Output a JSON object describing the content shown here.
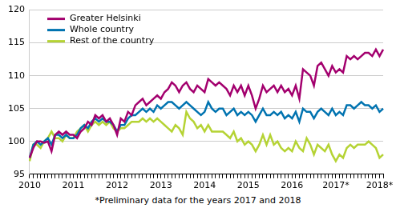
{
  "chart_data": {
    "type": "line",
    "categories": [
      "2010",
      null,
      null,
      null,
      null,
      null,
      null,
      null,
      null,
      null,
      null,
      null,
      "2011",
      null,
      null,
      null,
      null,
      null,
      null,
      null,
      null,
      null,
      null,
      null,
      "2012",
      null,
      null,
      null,
      null,
      null,
      null,
      null,
      null,
      null,
      null,
      null,
      "2013",
      null,
      null,
      null,
      null,
      null,
      null,
      null,
      null,
      null,
      null,
      null,
      "2014",
      null,
      null,
      null,
      null,
      null,
      null,
      null,
      null,
      null,
      null,
      null,
      "2015",
      null,
      null,
      null,
      null,
      null,
      null,
      null,
      null,
      null,
      null,
      null,
      "2016",
      null,
      null,
      null,
      null,
      null,
      null,
      null,
      null,
      null,
      null,
      null,
      "2017*",
      null,
      null,
      null,
      null,
      null,
      null,
      null,
      null,
      null,
      null,
      null,
      "2018*",
      null
    ],
    "series": [
      {
        "name": "Greater Helsinki",
        "color": "#a3006e",
        "values": [
          97.5,
          99,
          100,
          100,
          99.8,
          100,
          98.5,
          101,
          101.5,
          101,
          101.5,
          101,
          101,
          100.5,
          101.5,
          102,
          103,
          102.5,
          104,
          103.5,
          104,
          103,
          103.5,
          102.5,
          101,
          103.5,
          103,
          104.5,
          104,
          105.5,
          106,
          106.5,
          105.5,
          106,
          106.5,
          107,
          106.5,
          107.5,
          108,
          109,
          108.5,
          107.5,
          108.5,
          109,
          108,
          107.5,
          108.5,
          108,
          107.5,
          109.5,
          109,
          108.5,
          109,
          108.5,
          108,
          107,
          108.5,
          107.5,
          108.5,
          107,
          108.5,
          107,
          105,
          106.5,
          108.5,
          107.5,
          108,
          108.5,
          107.5,
          108.5,
          107.5,
          108,
          107,
          108.5,
          106.5,
          111,
          110.5,
          110,
          108.5,
          111.5,
          112,
          111,
          110,
          111.5,
          110.5,
          111,
          110.5,
          113,
          112.5,
          113,
          112.5,
          113,
          113.5,
          113.5,
          113,
          114,
          113,
          114
        ]
      },
      {
        "name": "Whole country",
        "color": "#0073b0",
        "values": [
          97.5,
          99.5,
          100,
          99.5,
          100,
          100.5,
          99.5,
          101,
          101,
          100.5,
          101,
          100.5,
          100.5,
          101,
          102,
          102.5,
          102,
          103,
          103.5,
          103,
          103.5,
          103,
          103,
          102.5,
          101.5,
          102.5,
          102.5,
          103.5,
          104,
          104,
          104.5,
          105,
          104.5,
          105,
          104.5,
          105.5,
          105,
          105.5,
          106,
          106,
          105.5,
          105,
          105.5,
          106,
          105.5,
          105,
          104.5,
          104,
          104.5,
          106,
          105,
          104.5,
          105,
          105,
          104,
          104.5,
          105,
          104,
          104.5,
          104,
          104.5,
          104,
          103,
          104,
          105,
          104,
          104,
          104.5,
          104,
          104.5,
          103.5,
          104,
          103.5,
          104.5,
          103,
          105,
          104.5,
          104.5,
          103.5,
          104.5,
          105,
          104.5,
          104,
          105,
          104,
          104.5,
          104,
          105.5,
          105.5,
          105,
          105.5,
          106,
          105.5,
          105.5,
          105,
          105.5,
          104.5,
          105
        ]
      },
      {
        "name": "Rest of the country",
        "color": "#b5d334",
        "values": [
          97,
          99.5,
          99.5,
          99,
          100,
          100.5,
          101.5,
          100.5,
          100.5,
          100,
          101,
          100.5,
          100.5,
          101.5,
          102,
          102.5,
          101.5,
          102.5,
          103,
          102.5,
          103,
          102.5,
          103,
          102,
          101.5,
          102,
          102,
          102.5,
          103,
          103,
          103,
          103.5,
          103,
          103.5,
          103,
          103.5,
          103,
          102.5,
          102,
          101.5,
          102.5,
          102,
          101,
          104.5,
          103.5,
          103,
          102,
          102.5,
          101.5,
          102.5,
          101.5,
          101.5,
          101.5,
          101.5,
          101,
          100.5,
          101.5,
          100,
          100.5,
          99.5,
          100,
          99.5,
          98.5,
          99.5,
          101,
          99.5,
          101,
          99.5,
          100,
          99,
          98.5,
          99,
          98.5,
          100,
          99,
          98.5,
          100.5,
          99.5,
          98,
          99.5,
          99,
          98.5,
          99.5,
          98,
          97,
          98,
          97.5,
          99,
          99.5,
          99,
          99.5,
          99.5,
          99.5,
          100,
          99.5,
          99,
          97.5,
          98
        ]
      }
    ],
    "ylim": [
      95,
      120
    ],
    "yticks": [
      95,
      100,
      105,
      110,
      115,
      120
    ],
    "grid": true,
    "legend": "upper left",
    "annotations": [
      "*Preliminary data for the years 2017 and 2018"
    ]
  }
}
